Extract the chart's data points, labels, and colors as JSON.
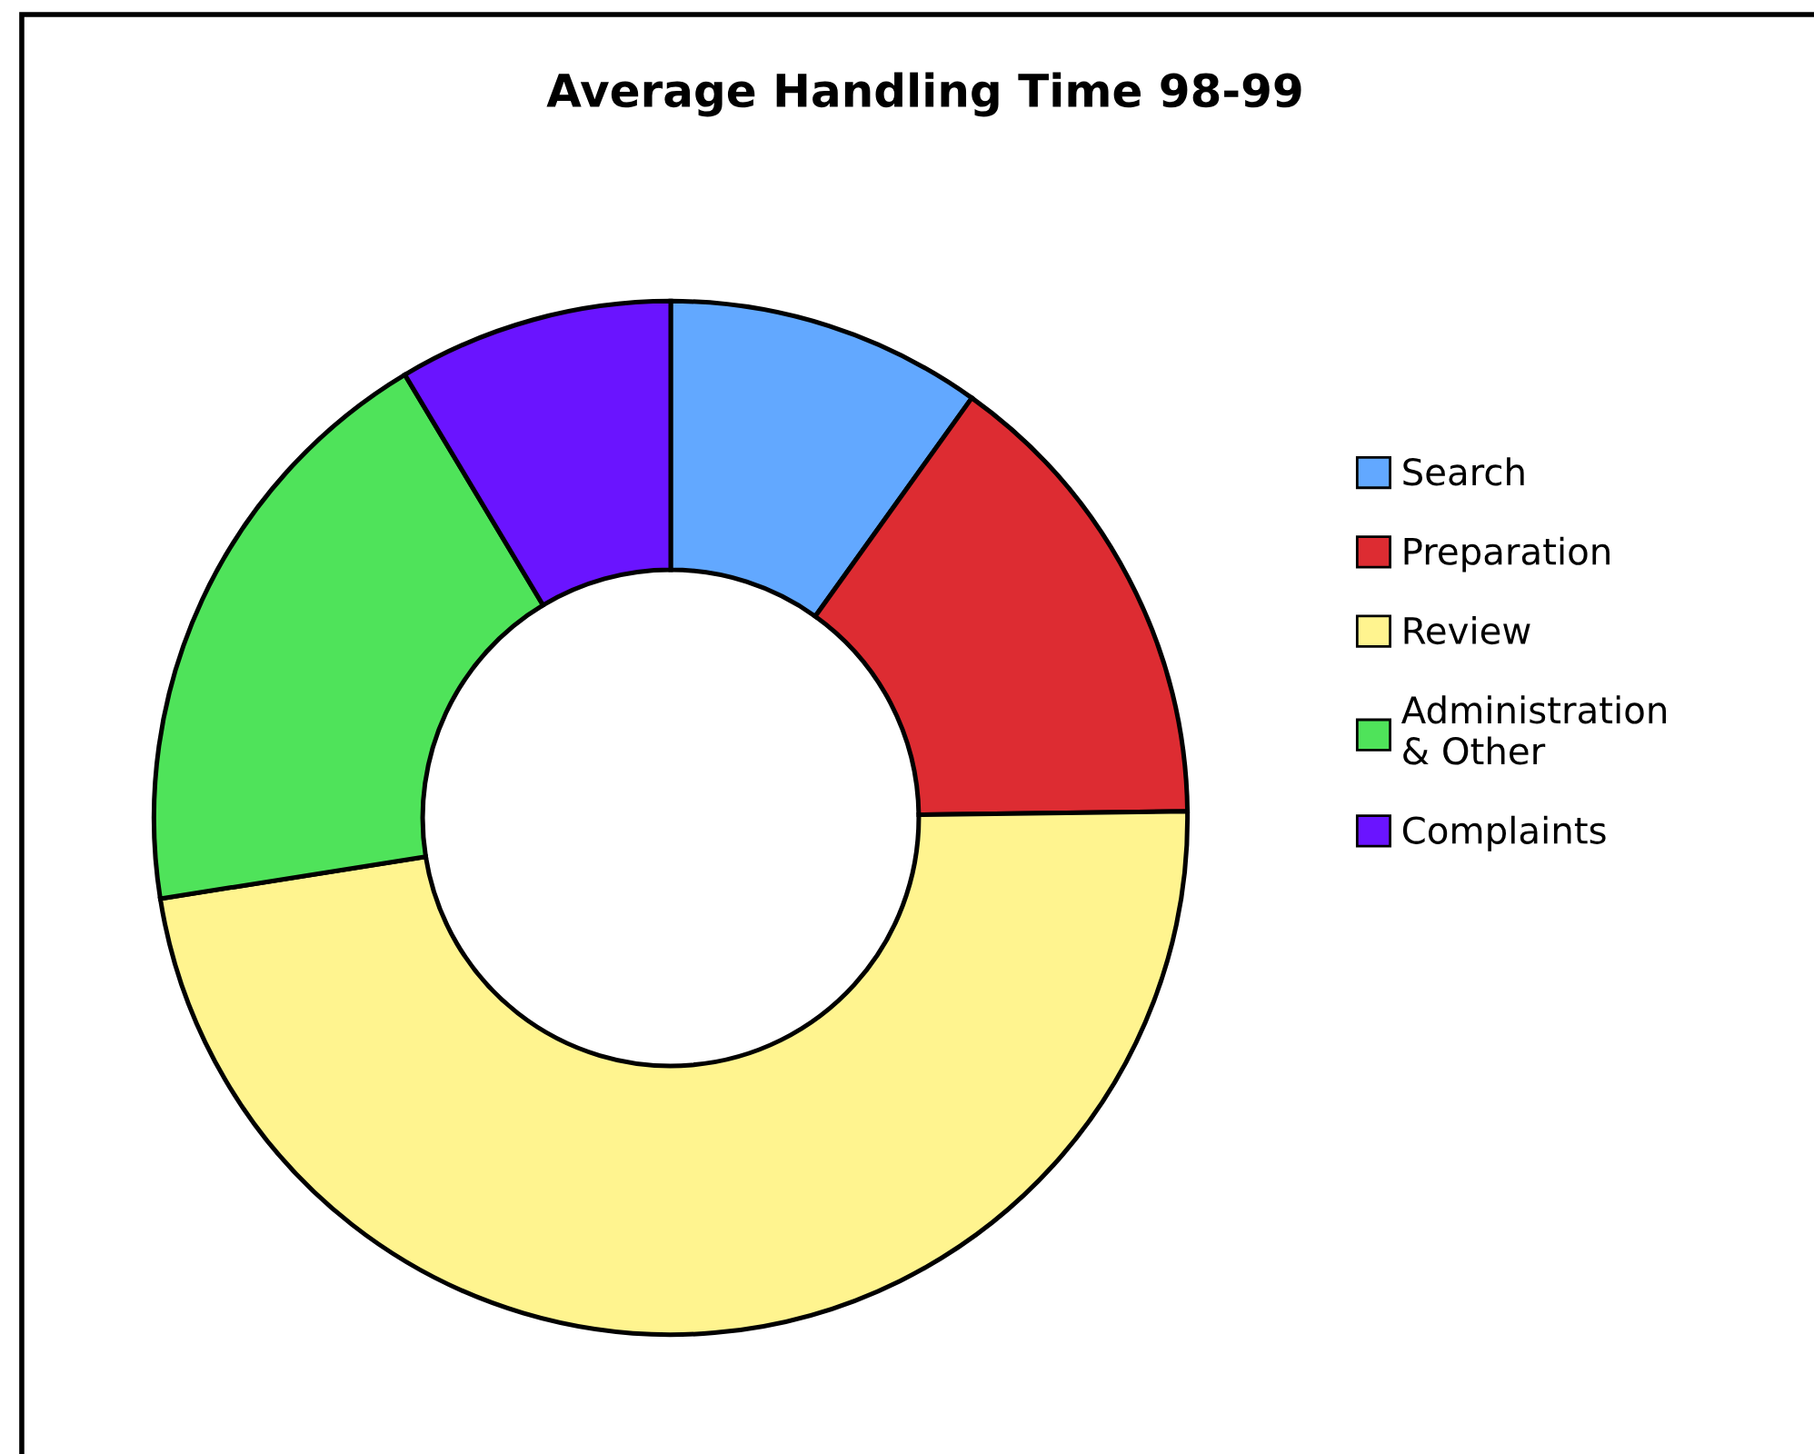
{
  "chart_data": {
    "type": "donut",
    "title": "Average Handling Time 98-99",
    "categories": [
      "Search",
      "Preparation",
      "Review",
      "Administration & Other",
      "Complaints"
    ],
    "values": [
      9.9,
      14.9,
      47.7,
      18.9,
      8.6
    ],
    "colors": [
      "#62a8ff",
      "#dd2c32",
      "#fff48f",
      "#4fe35a",
      "#6a14ff"
    ],
    "legend": "right"
  }
}
